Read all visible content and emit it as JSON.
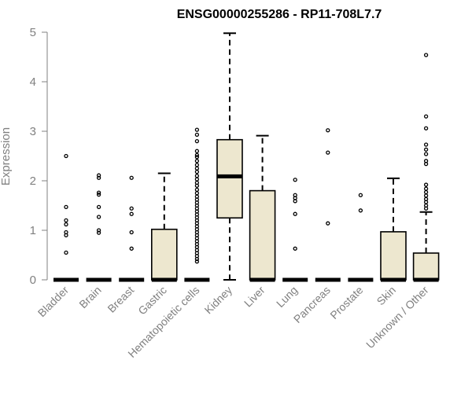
{
  "chart_data": {
    "type": "boxplot",
    "title": "ENSG00000255286 - RP11-708L7.7",
    "ylabel": "Expression",
    "xlabel": "",
    "ylim": [
      0,
      5
    ],
    "yticks": [
      0,
      1,
      2,
      3,
      4,
      5
    ],
    "box_fill": "#ede7cf",
    "categories": [
      "Bladder",
      "Brain",
      "Breast",
      "Gastric",
      "Hematopoietic cells",
      "Kidney",
      "Liver",
      "Lung",
      "Pancreas",
      "Prostate",
      "Skin",
      "Unknown / Other"
    ],
    "boxes": [
      {
        "name": "Bladder",
        "q1": 0,
        "median": 0,
        "q3": 0,
        "whisker_low": 0,
        "whisker_high": 0,
        "outliers": [
          2.5,
          1.47,
          1.2,
          1.12,
          0.96,
          0.9,
          0.55
        ]
      },
      {
        "name": "Brain",
        "q1": 0,
        "median": 0,
        "q3": 0,
        "whisker_low": 0,
        "whisker_high": 0,
        "outliers": [
          2.11,
          2.06,
          1.76,
          1.72,
          1.47,
          1.27,
          1.0,
          0.95
        ]
      },
      {
        "name": "Breast",
        "q1": 0,
        "median": 0,
        "q3": 0,
        "whisker_low": 0,
        "whisker_high": 0,
        "outliers": [
          2.06,
          1.44,
          1.33,
          0.96,
          0.63
        ]
      },
      {
        "name": "Gastric",
        "q1": 0,
        "median": 0,
        "q3": 1.02,
        "whisker_low": 0,
        "whisker_high": 2.15,
        "outliers": []
      },
      {
        "name": "Hematopoietic cells",
        "q1": 0,
        "median": 0,
        "q3": 0,
        "whisker_low": 0,
        "whisker_high": 0,
        "outliers": [
          3.03,
          2.93,
          2.8,
          2.6,
          2.52,
          2.48,
          2.4,
          2.32,
          2.25,
          2.18,
          2.1,
          2.03,
          1.96,
          1.9,
          1.82,
          1.75,
          1.68,
          1.62,
          1.56,
          1.5,
          1.44,
          1.38,
          1.32,
          1.26,
          1.2,
          1.14,
          1.08,
          1.02,
          0.96,
          0.9,
          0.84,
          0.78,
          0.72,
          0.66,
          0.6,
          0.54,
          0.48,
          0.42,
          0.37
        ]
      },
      {
        "name": "Kidney",
        "q1": 1.25,
        "median": 2.09,
        "q3": 2.83,
        "whisker_low": 0,
        "whisker_high": 4.98,
        "outliers": []
      },
      {
        "name": "Liver",
        "q1": 0,
        "median": 0,
        "q3": 1.8,
        "whisker_low": 0,
        "whisker_high": 2.91,
        "outliers": []
      },
      {
        "name": "Lung",
        "q1": 0,
        "median": 0,
        "q3": 0,
        "whisker_low": 0,
        "whisker_high": 0,
        "outliers": [
          2.02,
          1.71,
          1.65,
          1.59,
          1.33,
          0.63
        ]
      },
      {
        "name": "Pancreas",
        "q1": 0,
        "median": 0,
        "q3": 0,
        "whisker_low": 0,
        "whisker_high": 0,
        "outliers": [
          3.02,
          2.57,
          1.14
        ]
      },
      {
        "name": "Prostate",
        "q1": 0,
        "median": 0,
        "q3": 0,
        "whisker_low": 0,
        "whisker_high": 0,
        "outliers": [
          1.71,
          1.4
        ]
      },
      {
        "name": "Skin",
        "q1": 0,
        "median": 0,
        "q3": 0.97,
        "whisker_low": 0,
        "whisker_high": 2.05,
        "outliers": []
      },
      {
        "name": "Unknown / Other",
        "q1": 0,
        "median": 0,
        "q3": 0.54,
        "whisker_low": 0,
        "whisker_high": 1.37,
        "outliers": [
          4.54,
          3.3,
          3.06,
          2.73,
          2.63,
          2.54,
          2.4,
          2.34,
          1.92,
          1.84,
          1.77,
          1.7,
          1.63,
          1.57,
          1.5,
          1.44
        ]
      }
    ]
  }
}
